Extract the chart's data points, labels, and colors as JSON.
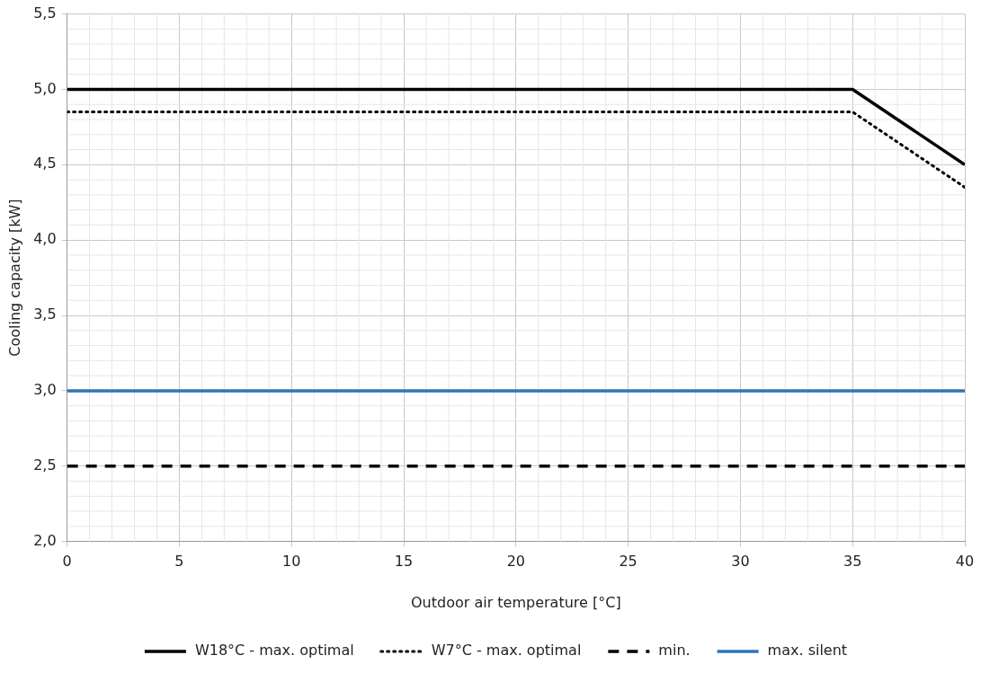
{
  "chart_data": {
    "type": "line",
    "xlabel": "Outdoor air temperature [°C]",
    "ylabel": "Cooling capacity [kW]",
    "x": [
      0,
      35,
      40
    ],
    "series": [
      {
        "name": "W18°C - max. optimal",
        "color": "#000000",
        "line_style": "solid",
        "values": [
          5.0,
          5.0,
          4.5
        ]
      },
      {
        "name": "W7°C - max. optimal",
        "color": "#000000",
        "line_style": "dotted",
        "values": [
          4.85,
          4.85,
          4.35
        ]
      },
      {
        "name": "min.",
        "color": "#000000",
        "line_style": "dashed",
        "values": [
          2.5,
          2.5,
          2.5
        ]
      },
      {
        "name": "max. silent",
        "color": "#2e75b6",
        "line_style": "solid",
        "values": [
          3.0,
          3.0,
          3.0
        ]
      }
    ],
    "xlim": [
      0,
      40
    ],
    "xticks": [
      0,
      5,
      10,
      15,
      20,
      25,
      30,
      35,
      40
    ],
    "ylim": [
      2.0,
      5.5
    ],
    "yticks": [
      {
        "value": 2.0,
        "label": "2,0"
      },
      {
        "value": 2.5,
        "label": "2,5"
      },
      {
        "value": 3.0,
        "label": "3,0"
      },
      {
        "value": 3.5,
        "label": "3,5"
      },
      {
        "value": 4.0,
        "label": "4,0"
      },
      {
        "value": 4.5,
        "label": "4,5"
      },
      {
        "value": 5.0,
        "label": "5,0"
      },
      {
        "value": 5.5,
        "label": "5,5"
      }
    ],
    "grid": true,
    "legend": "bottom",
    "marker": "none"
  }
}
